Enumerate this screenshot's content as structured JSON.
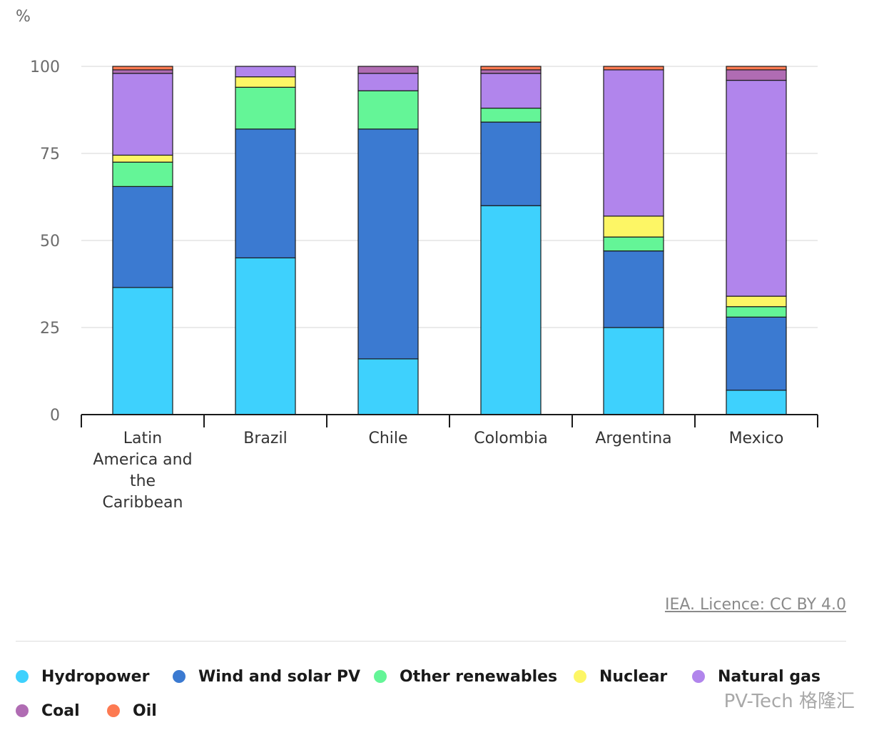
{
  "chart_data": {
    "type": "bar",
    "stacked": true,
    "ylabel": "%",
    "ylim": [
      0,
      100
    ],
    "yticks": [
      0,
      25,
      50,
      75,
      100
    ],
    "grid": true,
    "legend_position": "bottom",
    "categories": [
      "Latin America and the Caribbean",
      "Brazil",
      "Chile",
      "Colombia",
      "Argentina",
      "Mexico"
    ],
    "category_lines": [
      [
        "Latin",
        "America and",
        "the",
        "Caribbean"
      ],
      [
        "Brazil"
      ],
      [
        "Chile"
      ],
      [
        "Colombia"
      ],
      [
        "Argentina"
      ],
      [
        "Mexico"
      ]
    ],
    "series": [
      {
        "name": "Hydropower",
        "color": "#3ed1fd",
        "values": [
          36.5,
          45,
          16,
          60,
          25,
          7
        ]
      },
      {
        "name": "Wind and solar PV",
        "color": "#3b7ad1",
        "values": [
          29,
          37,
          66,
          24,
          22,
          21
        ]
      },
      {
        "name": "Other renewables",
        "color": "#64f597",
        "values": [
          7,
          12,
          11,
          4,
          4,
          3
        ]
      },
      {
        "name": "Nuclear",
        "color": "#fdf665",
        "values": [
          2,
          3,
          0,
          0,
          6,
          3
        ]
      },
      {
        "name": "Natural gas",
        "color": "#b185ec",
        "values": [
          23.5,
          3,
          5,
          10,
          42,
          62
        ]
      },
      {
        "name": "Coal",
        "color": "#b06cb3",
        "values": [
          1,
          0,
          2,
          1,
          0,
          3
        ]
      },
      {
        "name": "Oil",
        "color": "#fd7a52",
        "values": [
          1,
          0,
          0,
          1,
          1,
          1
        ]
      }
    ]
  },
  "source": "IEA. Licence: CC BY 4.0",
  "watermark": "PV-Tech 格隆汇"
}
